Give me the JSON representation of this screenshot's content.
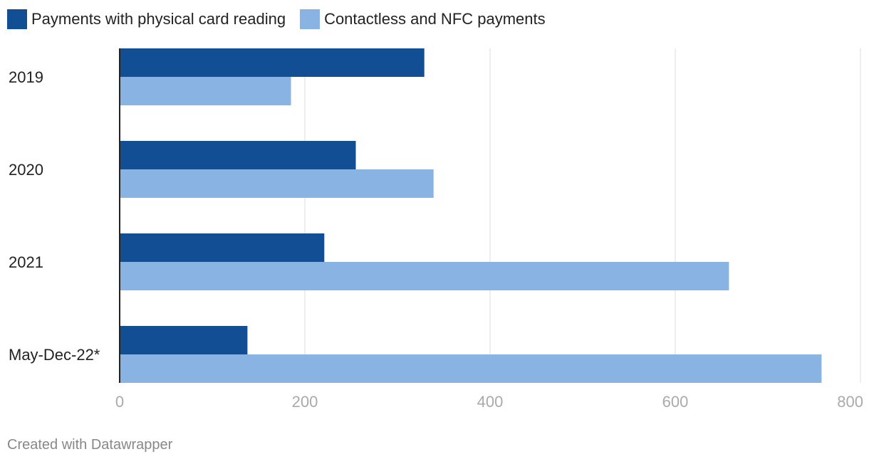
{
  "chart_data": {
    "type": "bar",
    "orientation": "horizontal",
    "categories": [
      "2019",
      "2020",
      "2021",
      "May-Dec-22*"
    ],
    "series": [
      {
        "name": "Payments with physical card reading",
        "color": "#124e93",
        "values": [
          329,
          255,
          221,
          138
        ]
      },
      {
        "name": "Contactless and NFC payments",
        "color": "#89b3e3",
        "values": [
          185,
          339,
          658,
          758
        ]
      }
    ],
    "x_ticks": [
      "0",
      "200",
      "400",
      "600",
      "800"
    ],
    "xlim": [
      0,
      800
    ],
    "grid": true,
    "legend_position": "top-left"
  },
  "footer": {
    "credit": "Created with Datawrapper"
  }
}
